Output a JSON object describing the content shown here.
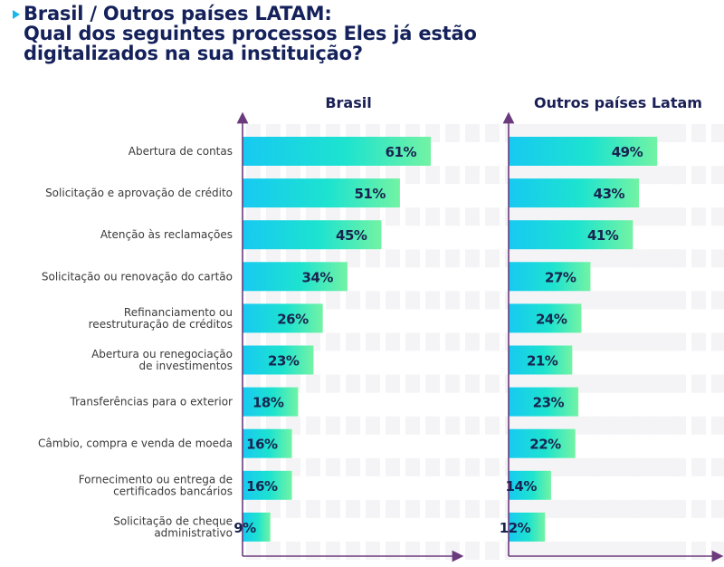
{
  "title": {
    "line1": "Brasil / Outros países LATAM:",
    "line2": "Qual dos seguintes processos Eles já estão",
    "line3": "digitalizados na sua instituição?"
  },
  "colors": {
    "title": "#14215a",
    "marker": "#1ab7ea",
    "bar_gradient_start": "#17c9f2",
    "bar_gradient_mid": "#1de3cf",
    "bar_gradient_end": "#72f3a4",
    "axis": "#6b3a7d",
    "value_label": "#18244f",
    "grid_cell": "#f4f4f6"
  },
  "chart_data": {
    "type": "bar",
    "orientation": "horizontal",
    "title": "Brasil / Outros países LATAM: Qual dos seguintes processos Eles já estão digitalizados na sua instituição?",
    "xlabel": "",
    "ylabel": "",
    "value_suffix": "%",
    "grid": true,
    "categories": [
      [
        "Abertura de contas"
      ],
      [
        "Solicitação e aprovação de crédito"
      ],
      [
        "Atenção às reclamações"
      ],
      [
        "Solicitação ou renovação do cartão"
      ],
      [
        "Refinanciamento ou",
        "reestruturação de créditos"
      ],
      [
        "Abertura ou renegociação",
        "de investimentos"
      ],
      [
        "Transferências para o exterior"
      ],
      [
        "Câmbio, compra e venda de moeda"
      ],
      [
        "Fornecimento ou entrega de",
        "certificados bancários"
      ],
      [
        "Solicitação de cheque",
        "administrativo"
      ]
    ],
    "series": [
      {
        "name": "Brasil",
        "values": [
          61,
          51,
          45,
          34,
          26,
          23,
          18,
          16,
          16,
          9
        ],
        "xlim": [
          0,
          70
        ]
      },
      {
        "name": "Outros países Latam",
        "values": [
          49,
          43,
          41,
          27,
          24,
          21,
          23,
          22,
          14,
          12
        ],
        "xlim": [
          0,
          70
        ]
      }
    ]
  }
}
